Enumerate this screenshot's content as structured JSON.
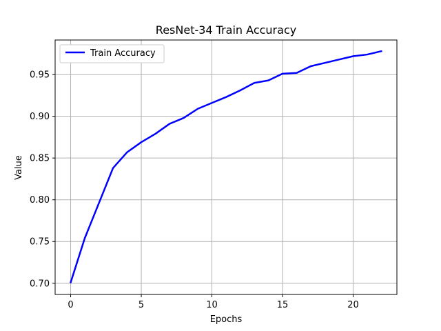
{
  "chart_data": {
    "type": "line",
    "title": "ResNet-34 Train Accuracy",
    "xlabel": "Epochs",
    "ylabel": "Value",
    "xlim": [
      -1.1,
      23.1
    ],
    "ylim": [
      0.6866,
      0.9914
    ],
    "xticks": [
      0,
      5,
      10,
      15,
      20
    ],
    "yticks": [
      0.7,
      0.75,
      0.8,
      0.85,
      0.9,
      0.95
    ],
    "xtick_labels": [
      "0",
      "5",
      "10",
      "15",
      "20"
    ],
    "ytick_labels": [
      "0.70",
      "0.75",
      "0.80",
      "0.85",
      "0.90",
      "0.95"
    ],
    "grid": true,
    "legend_position": "top-left",
    "x": [
      0,
      1,
      2,
      3,
      4,
      5,
      6,
      7,
      8,
      9,
      10,
      11,
      12,
      13,
      14,
      15,
      16,
      17,
      18,
      19,
      20,
      21,
      22
    ],
    "series": [
      {
        "name": "Train Accuracy",
        "color": "#0000ff",
        "values": [
          0.701,
          0.754,
          0.796,
          0.838,
          0.857,
          0.869,
          0.879,
          0.891,
          0.898,
          0.909,
          0.916,
          0.923,
          0.931,
          0.94,
          0.943,
          0.951,
          0.952,
          0.96,
          0.964,
          0.968,
          0.972,
          0.974,
          0.978
        ]
      }
    ]
  }
}
